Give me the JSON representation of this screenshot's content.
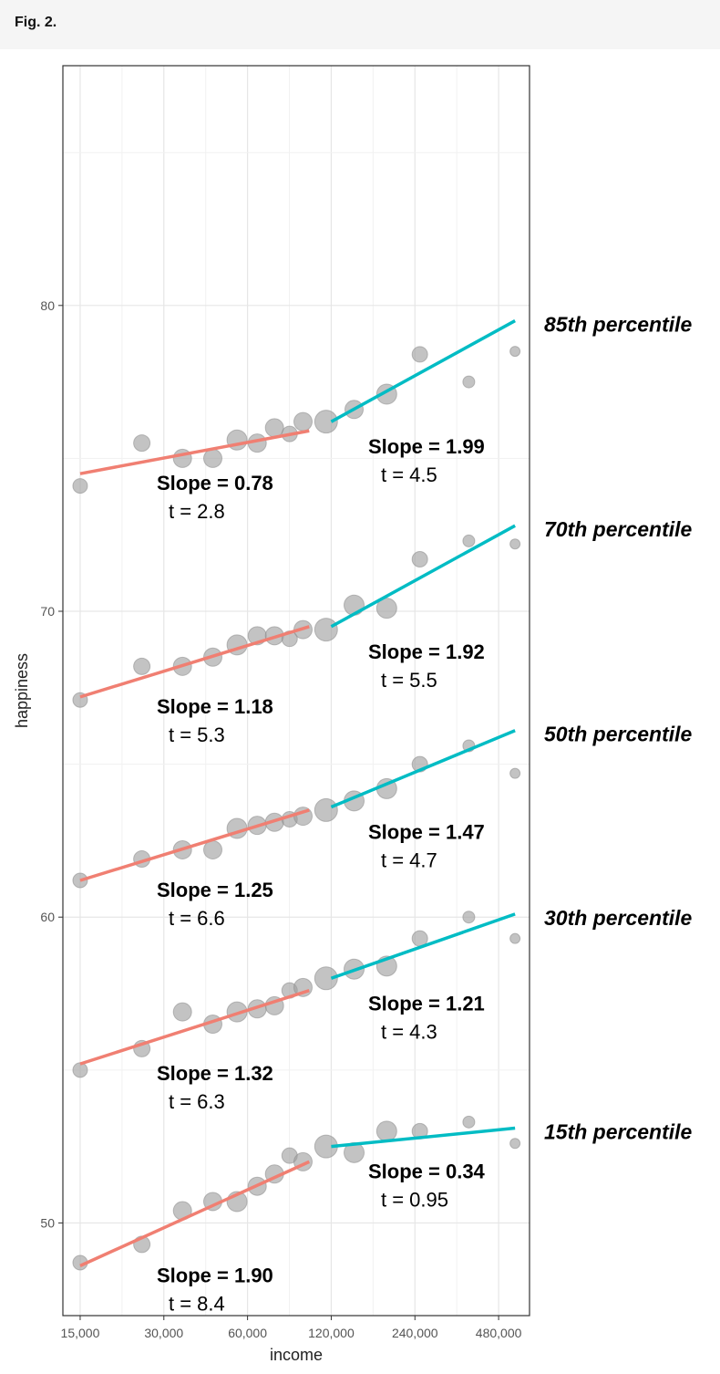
{
  "header": {
    "title": "Fig. 2."
  },
  "colors": {
    "low": "#f07f72",
    "high": "#00bcc4",
    "point": "#9e9e9e"
  },
  "chart_data": {
    "type": "scatter",
    "title": "",
    "xlabel": "income",
    "ylabel": "happiness",
    "xscale": "log2",
    "xlim": [
      13000,
      620000
    ],
    "ylim": [
      46.97,
      87.84
    ],
    "xticks": [
      15000,
      30000,
      60000,
      120000,
      240000,
      480000
    ],
    "xtick_labels": [
      "15,000",
      "30,000",
      "60,000",
      "120,000",
      "240,000",
      "480,000"
    ],
    "yticks": [
      50,
      60,
      70,
      80
    ],
    "ytick_labels": [
      "50",
      "60",
      "70",
      "80"
    ],
    "series": [
      {
        "name": "85th percentile",
        "points": [
          [
            15000,
            74.1
          ],
          [
            25000,
            75.5
          ],
          [
            35000,
            75.0
          ],
          [
            45000,
            75.0
          ],
          [
            55000,
            75.6
          ],
          [
            65000,
            75.5
          ],
          [
            75000,
            76.0
          ],
          [
            85000,
            75.8
          ],
          [
            95000,
            76.2
          ],
          [
            115000,
            76.2
          ],
          [
            145000,
            76.6
          ],
          [
            190000,
            77.1
          ],
          [
            250000,
            78.4
          ],
          [
            375000,
            77.5
          ],
          [
            550000,
            78.5
          ]
        ],
        "sizes": [
          16,
          18,
          20,
          20,
          22,
          20,
          20,
          17,
          20,
          25,
          20,
          22,
          17,
          13,
          11
        ],
        "low_fit": {
          "x": [
            15000,
            100000
          ],
          "y": [
            74.5,
            75.9
          ],
          "slope": "Slope = 0.78",
          "t": "t = 2.8"
        },
        "high_fit": {
          "x": [
            120000,
            550000
          ],
          "y": [
            76.2,
            79.5
          ],
          "slope": "Slope = 1.99",
          "t": "t = 4.5"
        }
      },
      {
        "name": "70th percentile",
        "points": [
          [
            15000,
            67.1
          ],
          [
            25000,
            68.2
          ],
          [
            35000,
            68.2
          ],
          [
            45000,
            68.5
          ],
          [
            55000,
            68.9
          ],
          [
            65000,
            69.2
          ],
          [
            75000,
            69.2
          ],
          [
            85000,
            69.1
          ],
          [
            95000,
            69.4
          ],
          [
            115000,
            69.4
          ],
          [
            145000,
            70.2
          ],
          [
            190000,
            70.1
          ],
          [
            250000,
            71.7
          ],
          [
            375000,
            72.3
          ],
          [
            550000,
            72.2
          ]
        ],
        "sizes": [
          16,
          18,
          20,
          20,
          22,
          20,
          20,
          17,
          20,
          25,
          22,
          22,
          17,
          13,
          11
        ],
        "low_fit": {
          "x": [
            15000,
            100000
          ],
          "y": [
            67.2,
            69.5
          ],
          "slope": "Slope = 1.18",
          "t": "t = 5.3"
        },
        "high_fit": {
          "x": [
            120000,
            550000
          ],
          "y": [
            69.5,
            72.8
          ],
          "slope": "Slope = 1.92",
          "t": "t = 5.5"
        }
      },
      {
        "name": "50th percentile",
        "points": [
          [
            15000,
            61.2
          ],
          [
            25000,
            61.9
          ],
          [
            35000,
            62.2
          ],
          [
            45000,
            62.2
          ],
          [
            55000,
            62.9
          ],
          [
            65000,
            63.0
          ],
          [
            75000,
            63.1
          ],
          [
            85000,
            63.2
          ],
          [
            95000,
            63.3
          ],
          [
            115000,
            63.5
          ],
          [
            145000,
            63.8
          ],
          [
            190000,
            64.2
          ],
          [
            250000,
            65.0
          ],
          [
            375000,
            65.6
          ],
          [
            550000,
            64.7
          ]
        ],
        "sizes": [
          16,
          18,
          20,
          20,
          22,
          20,
          20,
          17,
          20,
          25,
          22,
          22,
          17,
          13,
          11
        ],
        "low_fit": {
          "x": [
            15000,
            100000
          ],
          "y": [
            61.2,
            63.5
          ],
          "slope": "Slope = 1.25",
          "t": "t = 6.6"
        },
        "high_fit": {
          "x": [
            120000,
            550000
          ],
          "y": [
            63.6,
            66.1
          ],
          "slope": "Slope = 1.47",
          "t": "t = 4.7"
        }
      },
      {
        "name": "30th percentile",
        "points": [
          [
            15000,
            55.0
          ],
          [
            25000,
            55.7
          ],
          [
            35000,
            56.9
          ],
          [
            45000,
            56.5
          ],
          [
            55000,
            56.9
          ],
          [
            65000,
            57.0
          ],
          [
            75000,
            57.1
          ],
          [
            85000,
            57.6
          ],
          [
            95000,
            57.7
          ],
          [
            115000,
            58.0
          ],
          [
            145000,
            58.3
          ],
          [
            190000,
            58.4
          ],
          [
            250000,
            59.3
          ],
          [
            375000,
            60.0
          ],
          [
            550000,
            59.3
          ]
        ],
        "sizes": [
          16,
          18,
          20,
          20,
          22,
          20,
          20,
          17,
          20,
          25,
          22,
          22,
          17,
          13,
          11
        ],
        "low_fit": {
          "x": [
            15000,
            100000
          ],
          "y": [
            55.2,
            57.6
          ],
          "slope": "Slope = 1.32",
          "t": "t = 6.3"
        },
        "high_fit": {
          "x": [
            120000,
            550000
          ],
          "y": [
            58.0,
            60.1
          ],
          "slope": "Slope = 1.21",
          "t": "t = 4.3"
        }
      },
      {
        "name": "15th percentile",
        "points": [
          [
            15000,
            48.7
          ],
          [
            25000,
            49.3
          ],
          [
            35000,
            50.4
          ],
          [
            45000,
            50.7
          ],
          [
            55000,
            50.7
          ],
          [
            65000,
            51.2
          ],
          [
            75000,
            51.6
          ],
          [
            85000,
            52.2
          ],
          [
            95000,
            52.0
          ],
          [
            115000,
            52.5
          ],
          [
            145000,
            52.3
          ],
          [
            190000,
            53.0
          ],
          [
            250000,
            53.0
          ],
          [
            375000,
            53.3
          ],
          [
            550000,
            52.6
          ]
        ],
        "sizes": [
          16,
          18,
          20,
          20,
          22,
          20,
          20,
          17,
          20,
          25,
          22,
          22,
          17,
          13,
          11
        ],
        "low_fit": {
          "x": [
            15000,
            100000
          ],
          "y": [
            48.6,
            52.0
          ],
          "slope": "Slope = 1.90",
          "t": "t = 8.4"
        },
        "high_fit": {
          "x": [
            120000,
            550000
          ],
          "y": [
            52.5,
            53.1
          ],
          "slope": "Slope = 0.34",
          "t": "t = 0.95"
        }
      }
    ]
  }
}
